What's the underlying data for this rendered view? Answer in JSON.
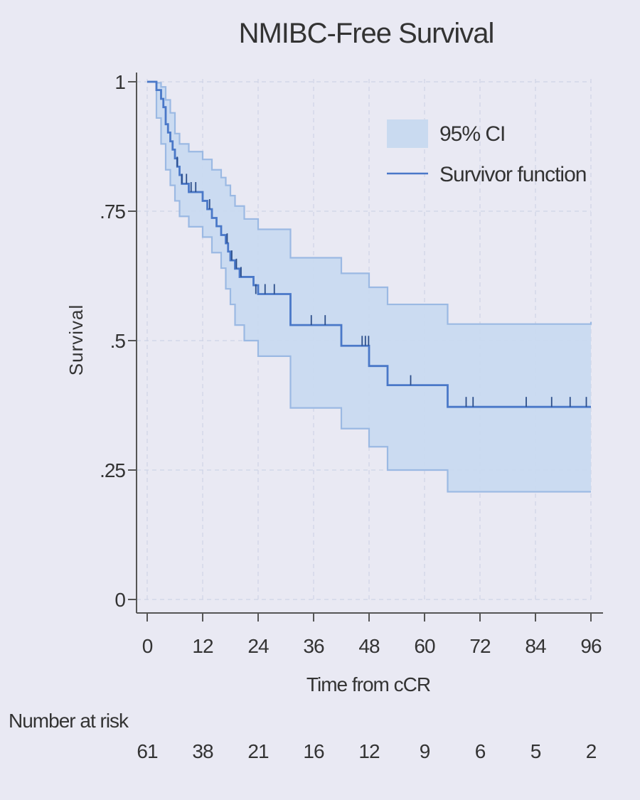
{
  "chart_data": {
    "type": "line",
    "title": "NMIBC-Free Survival",
    "xlabel": "Time from cCR",
    "ylabel": "Survival",
    "xlim": [
      0,
      96
    ],
    "ylim": [
      0,
      1
    ],
    "x_ticks": [
      0,
      12,
      24,
      36,
      48,
      60,
      72,
      84,
      96
    ],
    "x_tick_labels": [
      "0",
      "12",
      "24",
      "36",
      "48",
      "60",
      "72",
      "84",
      "96"
    ],
    "y_ticks": [
      0,
      0.25,
      0.5,
      0.75,
      1
    ],
    "y_tick_labels": [
      "0",
      ".25",
      ".5",
      ".75",
      "1"
    ],
    "grid": true,
    "legend": {
      "placement": "top-right",
      "entries": [
        {
          "label": "95% CI",
          "kind": "band"
        },
        {
          "label": "Survivor function",
          "kind": "line"
        }
      ]
    },
    "colors": {
      "line": "#4a78c8",
      "band": "#c9daf0",
      "band_edge": "#9bb9e3",
      "censor": "#2c4e8a",
      "axis": "#555555",
      "grid": "#cfd4e6"
    },
    "survivor_function": [
      [
        0,
        1.0
      ],
      [
        2,
        0.984
      ],
      [
        3,
        0.967
      ],
      [
        3.5,
        0.951
      ],
      [
        4,
        0.918
      ],
      [
        4.5,
        0.902
      ],
      [
        5,
        0.885
      ],
      [
        5.5,
        0.869
      ],
      [
        6,
        0.852
      ],
      [
        6.5,
        0.836
      ],
      [
        7,
        0.82
      ],
      [
        7.5,
        0.803
      ],
      [
        9,
        0.787
      ],
      [
        12,
        0.77
      ],
      [
        13,
        0.754
      ],
      [
        14,
        0.737
      ],
      [
        15,
        0.721
      ],
      [
        16,
        0.704
      ],
      [
        17,
        0.688
      ],
      [
        17.5,
        0.672
      ],
      [
        18,
        0.655
      ],
      [
        19,
        0.639
      ],
      [
        20,
        0.623
      ],
      [
        23,
        0.607
      ],
      [
        24,
        0.59
      ],
      [
        31,
        0.53
      ],
      [
        42,
        0.49
      ],
      [
        48,
        0.451
      ],
      [
        52,
        0.414
      ],
      [
        65,
        0.372
      ],
      [
        96,
        0.372
      ]
    ],
    "ci_upper": [
      [
        0,
        1.0
      ],
      [
        2,
        0.998
      ],
      [
        3,
        0.99
      ],
      [
        4,
        0.965
      ],
      [
        5,
        0.94
      ],
      [
        6,
        0.9
      ],
      [
        7,
        0.88
      ],
      [
        9,
        0.865
      ],
      [
        12,
        0.85
      ],
      [
        14,
        0.83
      ],
      [
        16,
        0.815
      ],
      [
        17,
        0.8
      ],
      [
        18,
        0.78
      ],
      [
        19,
        0.76
      ],
      [
        21,
        0.735
      ],
      [
        24,
        0.715
      ],
      [
        31,
        0.66
      ],
      [
        42,
        0.63
      ],
      [
        48,
        0.603
      ],
      [
        52,
        0.57
      ],
      [
        65,
        0.532
      ],
      [
        96,
        0.536
      ]
    ],
    "ci_lower": [
      [
        0,
        1.0
      ],
      [
        2,
        0.93
      ],
      [
        3,
        0.88
      ],
      [
        4,
        0.83
      ],
      [
        5,
        0.8
      ],
      [
        6,
        0.77
      ],
      [
        7,
        0.74
      ],
      [
        9,
        0.72
      ],
      [
        12,
        0.7
      ],
      [
        14,
        0.67
      ],
      [
        16,
        0.64
      ],
      [
        17,
        0.6
      ],
      [
        18,
        0.57
      ],
      [
        19,
        0.53
      ],
      [
        21,
        0.5
      ],
      [
        24,
        0.47
      ],
      [
        31,
        0.37
      ],
      [
        42,
        0.33
      ],
      [
        48,
        0.295
      ],
      [
        52,
        0.25
      ],
      [
        65,
        0.208
      ],
      [
        96,
        0.208
      ]
    ],
    "censored": [
      [
        6.5,
        0.836
      ],
      [
        7.5,
        0.803
      ],
      [
        8.5,
        0.803
      ],
      [
        9.5,
        0.787
      ],
      [
        10.5,
        0.787
      ],
      [
        13.5,
        0.754
      ],
      [
        17.3,
        0.688
      ],
      [
        18.3,
        0.655
      ],
      [
        19.3,
        0.639
      ],
      [
        20.3,
        0.623
      ],
      [
        23.5,
        0.59
      ],
      [
        25.5,
        0.59
      ],
      [
        27.5,
        0.59
      ],
      [
        35.5,
        0.53
      ],
      [
        38.5,
        0.53
      ],
      [
        46.5,
        0.49
      ],
      [
        47.2,
        0.49
      ],
      [
        47.9,
        0.49
      ],
      [
        57,
        0.414
      ],
      [
        69,
        0.372
      ],
      [
        70.5,
        0.372
      ],
      [
        82,
        0.372
      ],
      [
        87.5,
        0.372
      ],
      [
        91.5,
        0.372
      ],
      [
        95,
        0.372
      ]
    ],
    "number_at_risk": {
      "label": "Number at risk",
      "times": [
        0,
        12,
        24,
        36,
        48,
        60,
        72,
        84,
        96
      ],
      "values": [
        "61",
        "38",
        "21",
        "16",
        "12",
        "9",
        "6",
        "5",
        "2"
      ]
    }
  }
}
